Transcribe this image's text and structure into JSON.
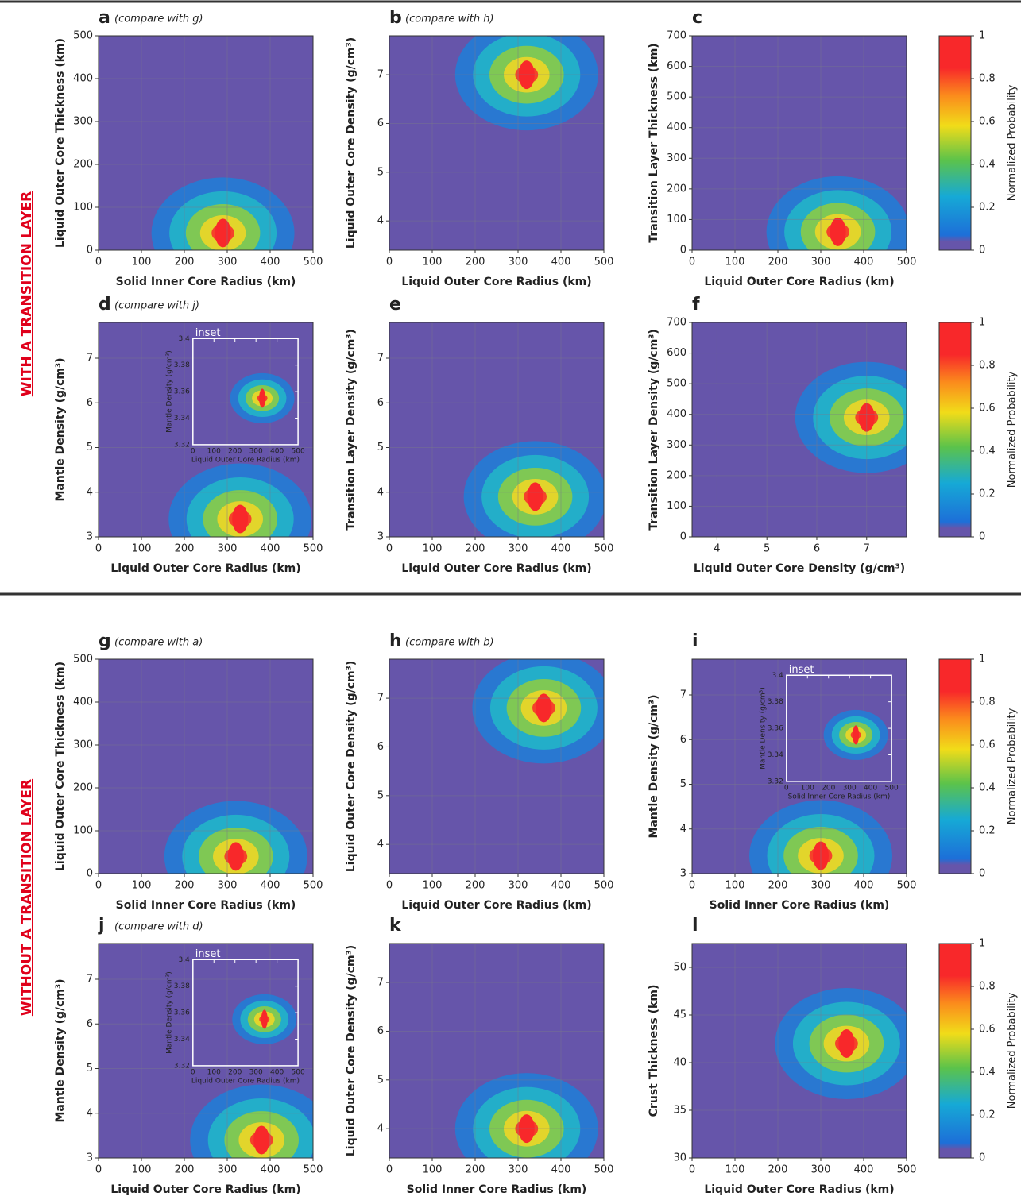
{
  "sections": [
    {
      "label": "WITH A TRANSITION LAYER"
    },
    {
      "label": "WITHOUT A TRANSITION LAYER"
    }
  ],
  "colorbar": {
    "label": "Normalized Probability",
    "lim": [
      0,
      1
    ],
    "ticks": [
      0,
      0.2,
      0.4,
      0.6,
      0.8,
      1
    ]
  },
  "chart_data": [
    {
      "type": "heatmap",
      "panel": "a",
      "note": "(compare with g)",
      "xlabel": "Solid Inner Core Radius (km)",
      "ylabel": "Liquid Outer Core Thickness (km)",
      "xlim": [
        0,
        500
      ],
      "xticks": [
        0,
        100,
        200,
        300,
        400,
        500
      ],
      "ylim": [
        0,
        500
      ],
      "yticks": [
        0,
        100,
        200,
        300,
        400,
        500
      ],
      "grid": true,
      "peak": {
        "x": 290,
        "y": 40
      }
    },
    {
      "type": "heatmap",
      "panel": "b",
      "note": "(compare with h)",
      "xlabel": "Liquid Outer Core Radius (km)",
      "ylabel": "Liquid Outer Core Density (g/cm³)",
      "xlim": [
        0,
        500
      ],
      "xticks": [
        0,
        100,
        200,
        300,
        400,
        500
      ],
      "ylim": [
        3.4,
        7.8
      ],
      "yticks": [
        4,
        5,
        6,
        7
      ],
      "grid": true,
      "peak": {
        "x": 320,
        "y": 7
      }
    },
    {
      "type": "heatmap",
      "panel": "c",
      "xlabel": "Liquid Outer Core Radius (km)",
      "ylabel": "Transition Layer Thickness (km)",
      "xlim": [
        0,
        500
      ],
      "xticks": [
        0,
        100,
        200,
        300,
        400,
        500
      ],
      "ylim": [
        0,
        700
      ],
      "yticks": [
        0,
        100,
        200,
        300,
        400,
        500,
        600,
        700
      ],
      "grid": true,
      "peak": {
        "x": 340,
        "y": 60
      }
    },
    {
      "type": "heatmap",
      "panel": "d",
      "note": "(compare with j)",
      "xlabel": "Liquid Outer Core Radius (km)",
      "ylabel": "Mantle Density (g/cm³)",
      "xlim": [
        0,
        500
      ],
      "xticks": [
        0,
        100,
        200,
        300,
        400,
        500
      ],
      "ylim": [
        3,
        7.8
      ],
      "yticks": [
        3,
        4,
        5,
        6,
        7
      ],
      "grid": true,
      "peak": {
        "x": 330,
        "y": 3.4
      },
      "inset": {
        "title": "inset",
        "xlabel": "Liquid Outer Core Radius (km)",
        "ylabel": "Mantle Density (g/cm³)",
        "xlim": [
          0,
          500
        ],
        "xticks": [
          0,
          100,
          200,
          300,
          400,
          500
        ],
        "ylim": [
          3.32,
          3.4
        ],
        "yticks": [
          3.32,
          3.34,
          3.36,
          3.38,
          3.4
        ],
        "peak": {
          "x": 330,
          "y": 3.355
        }
      }
    },
    {
      "type": "heatmap",
      "panel": "e",
      "xlabel": "Liquid Outer Core Radius (km)",
      "ylabel": "Transition Layer Density (g/cm³)",
      "xlim": [
        0,
        500
      ],
      "xticks": [
        0,
        100,
        200,
        300,
        400,
        500
      ],
      "ylim": [
        3,
        7.8
      ],
      "yticks": [
        3,
        4,
        5,
        6,
        7
      ],
      "grid": true,
      "peak": {
        "x": 340,
        "y": 3.9
      }
    },
    {
      "type": "heatmap",
      "panel": "f",
      "xlabel": "Liquid Outer Core Density (g/cm³)",
      "ylabel": "Transition Layer Density (g/cm³)",
      "xlim": [
        3.5,
        7.8
      ],
      "xticks": [
        4,
        5,
        6,
        7
      ],
      "ylim": [
        0,
        700
      ],
      "yticks": [
        0,
        100,
        200,
        300,
        400,
        500,
        600,
        700
      ],
      "grid": true,
      "peak": {
        "x": 7,
        "y": 390
      }
    },
    {
      "type": "heatmap",
      "panel": "g",
      "note": "(compare with a)",
      "xlabel": "Solid Inner Core Radius (km)",
      "ylabel": "Liquid Outer Core Thickness (km)",
      "xlim": [
        0,
        500
      ],
      "xticks": [
        0,
        100,
        200,
        300,
        400,
        500
      ],
      "ylim": [
        0,
        500
      ],
      "yticks": [
        0,
        100,
        200,
        300,
        400,
        500
      ],
      "grid": true,
      "peak": {
        "x": 320,
        "y": 40
      }
    },
    {
      "type": "heatmap",
      "panel": "h",
      "note": "(compare with b)",
      "xlabel": "Liquid Outer Core Radius (km)",
      "ylabel": "Liquid Outer Core Density (g/cm³)",
      "xlim": [
        0,
        500
      ],
      "xticks": [
        0,
        100,
        200,
        300,
        400,
        500
      ],
      "ylim": [
        3.4,
        7.8
      ],
      "yticks": [
        4,
        5,
        6,
        7
      ],
      "grid": true,
      "peak": {
        "x": 360,
        "y": 6.8
      }
    },
    {
      "type": "heatmap",
      "panel": "i",
      "xlabel": "Solid Inner Core Radius (km)",
      "ylabel": "Mantle Density (g/cm³)",
      "xlim": [
        0,
        500
      ],
      "xticks": [
        0,
        100,
        200,
        300,
        400,
        500
      ],
      "ylim": [
        3,
        7.8
      ],
      "yticks": [
        3,
        4,
        5,
        6,
        7
      ],
      "grid": true,
      "peak": {
        "x": 300,
        "y": 3.4
      },
      "inset": {
        "title": "inset",
        "xlabel": "Solid Inner Core Radius (km)",
        "ylabel": "Mantle Density (g/cm³)",
        "xlim": [
          0,
          500
        ],
        "xticks": [
          0,
          100,
          200,
          300,
          400,
          500
        ],
        "ylim": [
          3.32,
          3.4
        ],
        "yticks": [
          3.32,
          3.34,
          3.36,
          3.38,
          3.4
        ],
        "peak": {
          "x": 330,
          "y": 3.355
        }
      }
    },
    {
      "type": "heatmap",
      "panel": "j",
      "note": "(compare with d)",
      "xlabel": "Liquid Outer Core Radius (km)",
      "ylabel": "Mantle Density (g/cm³)",
      "xlim": [
        0,
        500
      ],
      "xticks": [
        0,
        100,
        200,
        300,
        400,
        500
      ],
      "ylim": [
        3,
        7.8
      ],
      "yticks": [
        3,
        4,
        5,
        6,
        7
      ],
      "grid": true,
      "peak": {
        "x": 380,
        "y": 3.4
      },
      "inset": {
        "title": "inset",
        "xlabel": "Liquid Outer Core Radius (km)",
        "ylabel": "Mantle Density (g/cm³)",
        "xlim": [
          0,
          500
        ],
        "xticks": [
          0,
          100,
          200,
          300,
          400,
          500
        ],
        "ylim": [
          3.32,
          3.4
        ],
        "yticks": [
          3.32,
          3.34,
          3.36,
          3.38,
          3.4
        ],
        "peak": {
          "x": 340,
          "y": 3.355
        }
      }
    },
    {
      "type": "heatmap",
      "panel": "k",
      "xlabel": "Solid Inner Core Radius (km)",
      "ylabel": "Liquid Outer Core Density (g/cm³)",
      "xlim": [
        0,
        500
      ],
      "xticks": [
        0,
        100,
        200,
        300,
        400,
        500
      ],
      "ylim": [
        3.4,
        7.8
      ],
      "yticks": [
        4,
        5,
        6,
        7
      ],
      "grid": true,
      "peak": {
        "x": 320,
        "y": 4
      }
    },
    {
      "type": "heatmap",
      "panel": "l",
      "xlabel": "Liquid Outer Core Radius (km)",
      "ylabel": "Crust Thickness (km)",
      "xlim": [
        0,
        500
      ],
      "xticks": [
        0,
        100,
        200,
        300,
        400,
        500
      ],
      "ylim": [
        30,
        52.5
      ],
      "yticks": [
        30,
        35,
        40,
        45,
        50
      ],
      "grid": true,
      "peak": {
        "x": 360,
        "y": 42
      }
    }
  ]
}
